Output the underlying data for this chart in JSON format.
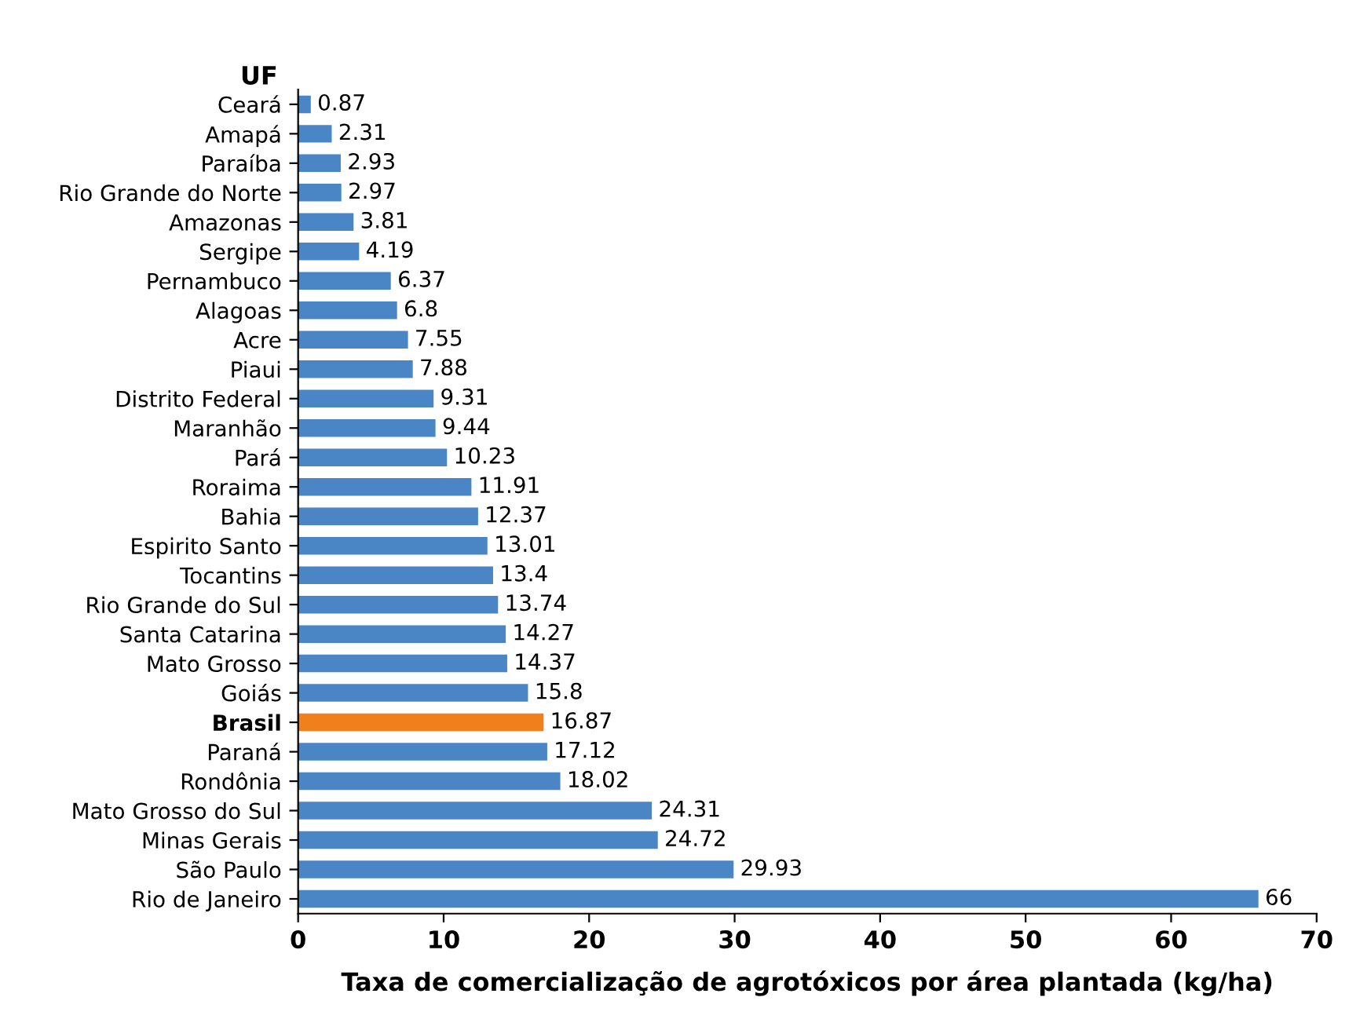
{
  "chart_data": {
    "type": "bar",
    "orientation": "horizontal",
    "ylabel": "UF",
    "xlabel": "Taxa de comercialização de agrotóxicos por área plantada (kg/ha)",
    "categories": [
      "Ceará",
      "Amapá",
      "Paraíba",
      "Rio Grande do Norte",
      "Amazonas",
      "Sergipe",
      "Pernambuco",
      "Alagoas",
      "Acre",
      "Piaui",
      "Distrito Federal",
      "Maranhão",
      "Pará",
      "Roraima",
      "Bahia",
      "Espirito Santo",
      "Tocantins",
      "Rio Grande do Sul",
      "Santa Catarina",
      "Mato Grosso",
      "Goiás",
      "Brasil",
      "Paraná",
      "Rondônia",
      "Mato Grosso do Sul",
      "Minas Gerais",
      "São Paulo",
      "Rio de Janeiro"
    ],
    "values": [
      0.87,
      2.31,
      2.93,
      2.97,
      3.81,
      4.19,
      6.37,
      6.8,
      7.55,
      7.88,
      9.31,
      9.44,
      10.23,
      11.91,
      12.37,
      13.01,
      13.4,
      13.74,
      14.27,
      14.37,
      15.8,
      16.87,
      17.12,
      18.02,
      24.31,
      24.72,
      29.93,
      66
    ],
    "colors": [
      "#4a86c6",
      "#4a86c6",
      "#4a86c6",
      "#4a86c6",
      "#4a86c6",
      "#4a86c6",
      "#4a86c6",
      "#4a86c6",
      "#4a86c6",
      "#4a86c6",
      "#4a86c6",
      "#4a86c6",
      "#4a86c6",
      "#4a86c6",
      "#4a86c6",
      "#4a86c6",
      "#4a86c6",
      "#4a86c6",
      "#4a86c6",
      "#4a86c6",
      "#4a86c6",
      "#f07f1c",
      "#4a86c6",
      "#4a86c6",
      "#4a86c6",
      "#4a86c6",
      "#4a86c6",
      "#4a86c6"
    ],
    "data_labels": true,
    "xlim": [
      0,
      70
    ],
    "xticks": [
      0,
      10,
      20,
      30,
      40,
      50,
      60,
      70
    ],
    "grid": false,
    "legend": false
  }
}
